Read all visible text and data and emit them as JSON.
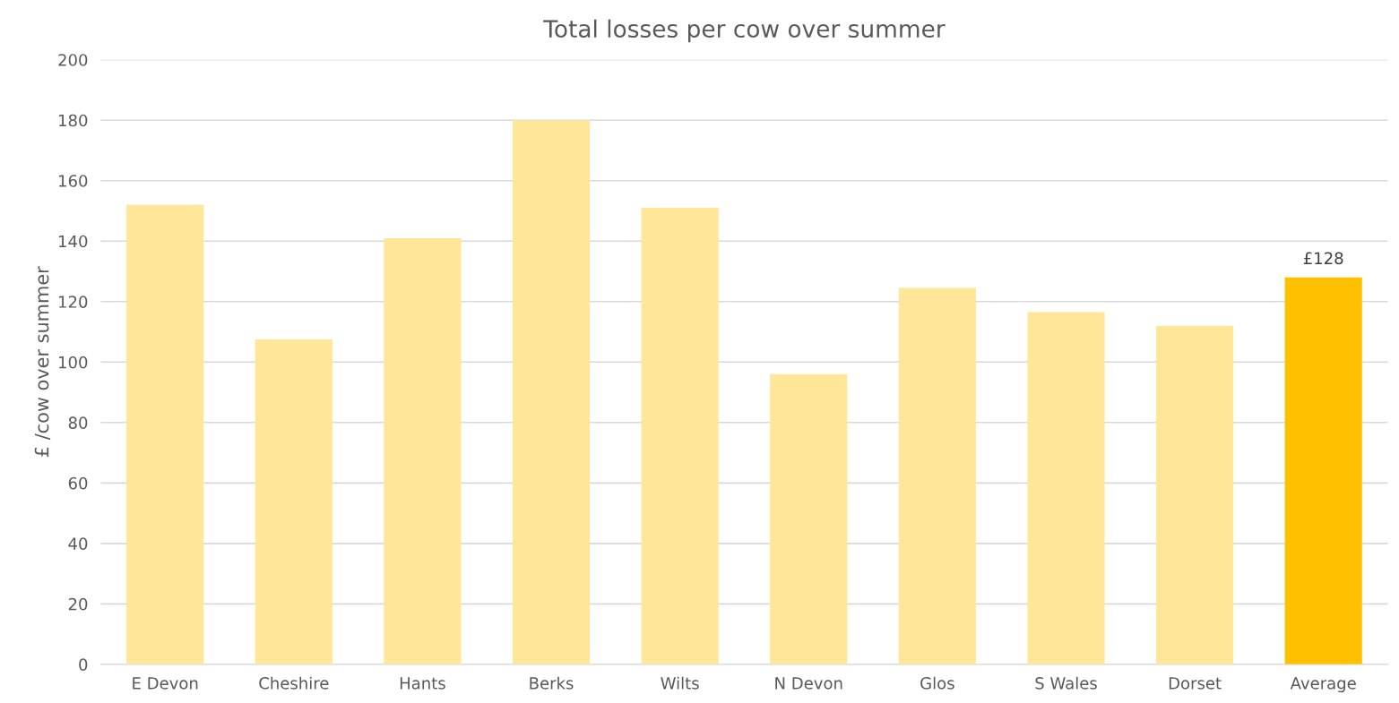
{
  "chart_data": {
    "type": "bar",
    "title": "Total losses per cow over summer",
    "ylabel": "£ /cow over summer",
    "categories": [
      "E Devon",
      "Cheshire",
      "Hants",
      "Berks",
      "Wilts",
      "N Devon",
      "Glos",
      "S Wales",
      "Dorset",
      "Average"
    ],
    "values": [
      152,
      107.5,
      141,
      180,
      151,
      96,
      124.5,
      116.5,
      112,
      128
    ],
    "colors": [
      "#ffe699",
      "#ffe699",
      "#ffe699",
      "#ffe699",
      "#ffe699",
      "#ffe699",
      "#ffe699",
      "#ffe699",
      "#ffe699",
      "#ffc000"
    ],
    "value_labels": [
      null,
      null,
      null,
      null,
      null,
      null,
      null,
      null,
      null,
      "£128"
    ],
    "ylim": [
      0,
      200
    ],
    "yticks": [
      0,
      20,
      40,
      60,
      80,
      100,
      120,
      140,
      160,
      180,
      200
    ],
    "grid": "y",
    "legend": false
  }
}
